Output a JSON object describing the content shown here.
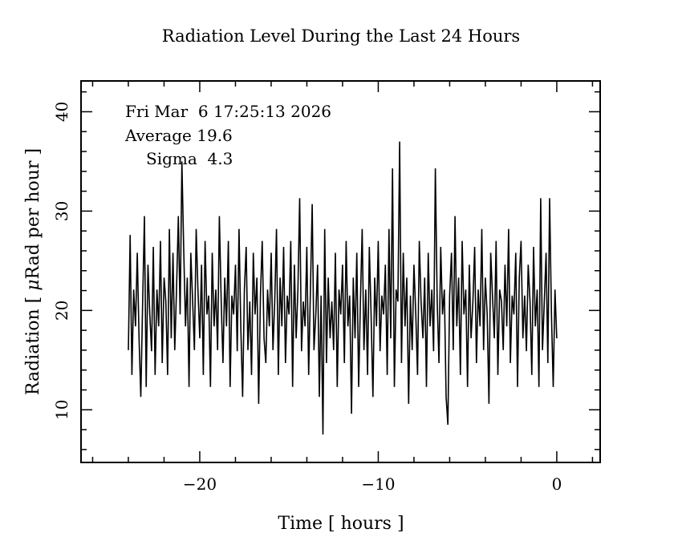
{
  "chart_data": {
    "type": "line",
    "title": "Radiation Level During the Last 24 Hours",
    "xlabel": "Time [ hours ]",
    "ylabel_prefix": "Radiation [ ",
    "ylabel_mu": "μ",
    "ylabel_suffix": "Rad per hour ]",
    "xlim": [
      -26.65,
      2.43
    ],
    "ylim": [
      4.7,
      43.1
    ],
    "xticks": [
      -20,
      -10,
      0
    ],
    "xtick_labels": [
      "−20",
      "−10",
      "0"
    ],
    "yticks": [
      10,
      20,
      30,
      40
    ],
    "ytick_labels": [
      "10",
      "20",
      "30",
      "40"
    ],
    "x_minor_step": 2,
    "y_minor_step": 2,
    "grid": false,
    "annotations": {
      "timestamp": "Fri Mar  6 17:25:13 2026",
      "average": "Average 19.6",
      "sigma": "Sigma  4.3"
    },
    "series": [
      {
        "name": "radiation",
        "color": "#000000",
        "x_start": -24,
        "x_step": 0.1,
        "values": [
          16.0,
          27.6,
          13.5,
          22.1,
          18.4,
          25.8,
          17.2,
          11.3,
          20.9,
          29.5,
          12.3,
          24.6,
          19.6,
          15.9,
          26.4,
          13.5,
          22.1,
          18.4,
          27.0,
          14.7,
          23.3,
          20.9,
          13.5,
          28.2,
          17.2,
          25.8,
          16.0,
          22.1,
          29.5,
          19.6,
          35.0,
          26.4,
          18.4,
          23.3,
          12.3,
          25.8,
          20.9,
          16.0,
          28.2,
          22.1,
          17.2,
          24.6,
          13.5,
          27.0,
          19.6,
          21.5,
          12.3,
          25.8,
          18.4,
          22.1,
          16.0,
          29.5,
          20.9,
          14.7,
          23.3,
          18.4,
          27.0,
          12.3,
          21.5,
          19.6,
          24.6,
          15.9,
          28.2,
          18.4,
          11.3,
          22.1,
          26.4,
          16.0,
          20.9,
          13.5,
          25.8,
          19.6,
          23.3,
          10.6,
          21.5,
          27.0,
          17.2,
          14.7,
          22.1,
          18.4,
          25.8,
          16.0,
          20.9,
          28.2,
          13.5,
          23.3,
          18.4,
          26.4,
          14.7,
          21.5,
          19.6,
          27.0,
          12.3,
          24.6,
          17.2,
          22.1,
          31.3,
          15.9,
          20.9,
          18.4,
          26.4,
          13.5,
          22.1,
          30.7,
          16.0,
          19.6,
          24.6,
          11.3,
          21.5,
          7.5,
          28.2,
          14.7,
          23.3,
          17.2,
          20.9,
          16.0,
          25.8,
          12.3,
          22.1,
          19.6,
          24.6,
          14.7,
          27.0,
          18.4,
          21.5,
          9.6,
          23.3,
          17.2,
          25.8,
          12.3,
          20.9,
          28.2,
          16.0,
          22.1,
          13.5,
          26.4,
          19.6,
          11.3,
          23.3,
          18.4,
          27.0,
          15.9,
          21.5,
          19.6,
          24.6,
          13.5,
          28.2,
          17.2,
          34.3,
          12.3,
          22.1,
          20.9,
          37.0,
          14.7,
          25.8,
          18.4,
          23.3,
          10.6,
          21.5,
          16.0,
          24.6,
          19.6,
          13.5,
          27.0,
          20.9,
          17.2,
          23.3,
          12.3,
          25.8,
          18.4,
          22.1,
          15.9,
          34.3,
          20.9,
          14.7,
          26.4,
          19.6,
          22.1,
          11.3,
          8.5,
          21.5,
          25.8,
          16.0,
          29.5,
          18.4,
          23.3,
          13.5,
          27.0,
          19.6,
          22.1,
          12.3,
          24.6,
          17.2,
          20.9,
          26.4,
          14.7,
          22.1,
          18.4,
          28.2,
          16.0,
          23.3,
          19.6,
          10.6,
          25.8,
          21.5,
          17.2,
          27.0,
          13.5,
          22.1,
          20.9,
          16.0,
          24.6,
          18.4,
          28.2,
          14.7,
          21.5,
          19.6,
          25.8,
          12.3,
          23.3,
          27.0,
          17.2,
          21.5,
          15.9,
          24.6,
          20.9,
          13.5,
          26.4,
          18.4,
          22.1,
          12.3,
          31.3,
          16.0,
          20.9,
          25.8,
          14.7,
          31.3,
          19.6,
          12.3,
          22.1,
          17.2
        ]
      }
    ]
  }
}
